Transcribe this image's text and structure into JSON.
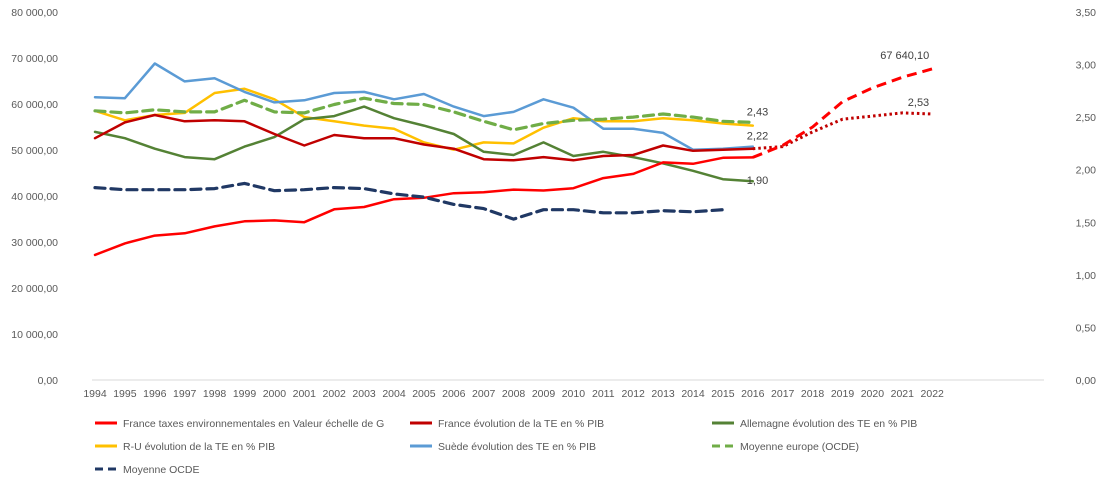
{
  "chart_data": {
    "type": "line",
    "title": "",
    "x": [
      "1994",
      "1995",
      "1996",
      "1997",
      "1998",
      "1999",
      "2000",
      "2001",
      "2002",
      "2003",
      "2004",
      "2005",
      "2006",
      "2007",
      "2008",
      "2009",
      "2010",
      "2011",
      "2012",
      "2013",
      "2014",
      "2015",
      "2016",
      "2017",
      "2018",
      "2019",
      "2020",
      "2021",
      "2022"
    ],
    "y_left": {
      "range": [
        0,
        80000
      ],
      "ticks": [
        0,
        10000,
        20000,
        30000,
        40000,
        50000,
        60000,
        70000,
        80000
      ],
      "tick_labels": [
        "0,00",
        "10 000,00",
        "20 000,00",
        "30 000,00",
        "40 000,00",
        "50 000,00",
        "60 000,00",
        "70 000,00",
        "80 000,00"
      ]
    },
    "y_right": {
      "range": [
        0,
        3.5
      ],
      "ticks": [
        0,
        0.5,
        1.0,
        1.5,
        2.0,
        2.5,
        3.0,
        3.5
      ],
      "tick_labels": [
        "0,00",
        "0,50",
        "1,00",
        "1,50",
        "2,00",
        "2,50",
        "3,00",
        "3,50"
      ]
    },
    "grid": false,
    "legend_position": "bottom",
    "series": [
      {
        "name": "France taxes environnementales en Valeur échelle de G",
        "axis": "left",
        "color": "#ff0000",
        "style": "solid",
        "values": [
          27200,
          29700,
          31400,
          31900,
          33400,
          34500,
          34700,
          34300,
          37100,
          37600,
          39300,
          39600,
          40600,
          40800,
          41400,
          41200,
          41700,
          43900,
          44800,
          47300,
          47000,
          48300,
          48400,
          null,
          null,
          null,
          null,
          null,
          null
        ],
        "forecast_style": "dashed",
        "forecast_values": [
          null,
          null,
          null,
          null,
          null,
          null,
          null,
          null,
          null,
          null,
          null,
          null,
          null,
          null,
          null,
          null,
          null,
          null,
          null,
          null,
          null,
          null,
          48400,
          51000,
          55000,
          60500,
          63500,
          65800,
          67640.1
        ]
      },
      {
        "name": "France évolution de la TE en % PIB",
        "axis": "right",
        "color": "#c00000",
        "style": "solid",
        "values": [
          2.3,
          2.45,
          2.52,
          2.46,
          2.47,
          2.46,
          2.34,
          2.23,
          2.33,
          2.3,
          2.3,
          2.24,
          2.2,
          2.1,
          2.09,
          2.12,
          2.09,
          2.13,
          2.14,
          2.23,
          2.18,
          2.19,
          2.2,
          null,
          null,
          null,
          null,
          null,
          null
        ],
        "forecast_style": "dotted",
        "forecast_values": [
          null,
          null,
          null,
          null,
          null,
          null,
          null,
          null,
          null,
          null,
          null,
          null,
          null,
          null,
          null,
          null,
          null,
          null,
          null,
          null,
          null,
          null,
          2.2,
          2.22,
          2.36,
          2.48,
          2.51,
          2.54,
          2.53
        ]
      },
      {
        "name": "Allemagne évolution des TE en % PIB",
        "axis": "right",
        "color": "#548235",
        "style": "solid",
        "values": [
          2.36,
          2.3,
          2.2,
          2.12,
          2.1,
          2.22,
          2.31,
          2.48,
          2.51,
          2.6,
          2.49,
          2.42,
          2.34,
          2.17,
          2.14,
          2.26,
          2.13,
          2.17,
          2.12,
          2.06,
          1.99,
          1.91,
          1.89,
          null,
          null,
          null,
          null,
          null,
          null
        ]
      },
      {
        "name": "R-U évolution de la TE en % PIB",
        "axis": "right",
        "color": "#ffc000",
        "style": "solid",
        "values": [
          2.56,
          2.47,
          2.52,
          2.54,
          2.73,
          2.77,
          2.67,
          2.5,
          2.46,
          2.42,
          2.39,
          2.26,
          2.19,
          2.26,
          2.25,
          2.4,
          2.49,
          2.46,
          2.46,
          2.49,
          2.47,
          2.44,
          2.42,
          null,
          null,
          null,
          null,
          null,
          null
        ]
      },
      {
        "name": "Suède évolution des TE en % PIB",
        "axis": "right",
        "color": "#5b9bd5",
        "style": "solid",
        "values": [
          2.69,
          2.68,
          3.01,
          2.84,
          2.87,
          2.74,
          2.64,
          2.66,
          2.73,
          2.74,
          2.67,
          2.72,
          2.6,
          2.51,
          2.55,
          2.67,
          2.59,
          2.39,
          2.39,
          2.35,
          2.19,
          2.2,
          2.22,
          null,
          null,
          null,
          null,
          null,
          null
        ]
      },
      {
        "name": "Moyenne europe (OCDE)",
        "axis": "right",
        "color": "#70ad47",
        "style": "dashed",
        "values": [
          2.56,
          2.54,
          2.57,
          2.55,
          2.55,
          2.66,
          2.55,
          2.54,
          2.62,
          2.68,
          2.63,
          2.62,
          2.55,
          2.46,
          2.38,
          2.44,
          2.47,
          2.48,
          2.5,
          2.53,
          2.5,
          2.46,
          2.45,
          null,
          null,
          null,
          null,
          null,
          null
        ]
      },
      {
        "name": "Moyenne OCDE",
        "axis": "right",
        "color": "#203864",
        "style": "dashed",
        "values": [
          1.83,
          1.81,
          1.81,
          1.81,
          1.82,
          1.87,
          1.8,
          1.81,
          1.83,
          1.82,
          1.77,
          1.74,
          1.67,
          1.63,
          1.53,
          1.62,
          1.62,
          1.59,
          1.59,
          1.61,
          1.6,
          1.62,
          null,
          null,
          null,
          null,
          null,
          null,
          null
        ]
      }
    ],
    "annotations": [
      {
        "text": "2,43",
        "at": "2016",
        "axis": "right",
        "value": 2.43
      },
      {
        "text": "2,22",
        "at": "2016",
        "axis": "right",
        "value": 2.22
      },
      {
        "text": "1,90",
        "at": "2016",
        "axis": "right",
        "value": 1.9
      },
      {
        "text": "67 640,10",
        "at": "2022",
        "axis": "left",
        "value": 67640.1
      },
      {
        "text": "2,53",
        "at": "2022",
        "axis": "right",
        "value": 2.53
      }
    ]
  }
}
